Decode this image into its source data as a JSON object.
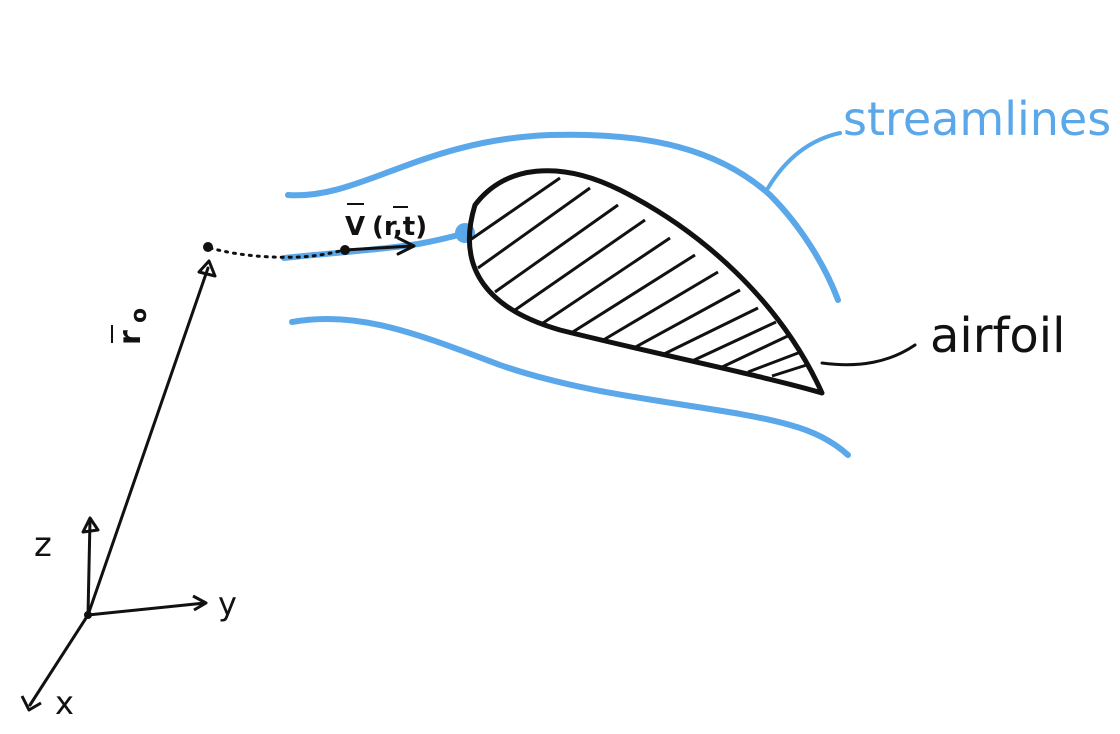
{
  "colors": {
    "streamline": "#5aa8ea",
    "ink": "#111111",
    "background": "#ffffff"
  },
  "labels": {
    "streamlines": "streamlines",
    "airfoil": "airfoil",
    "velocity": "V (r,t)",
    "velocity_v": "V",
    "velocity_args": "(r,t)",
    "position": "r",
    "position_subscript": "o",
    "axis_x": "x",
    "axis_y": "y",
    "axis_z": "z"
  }
}
